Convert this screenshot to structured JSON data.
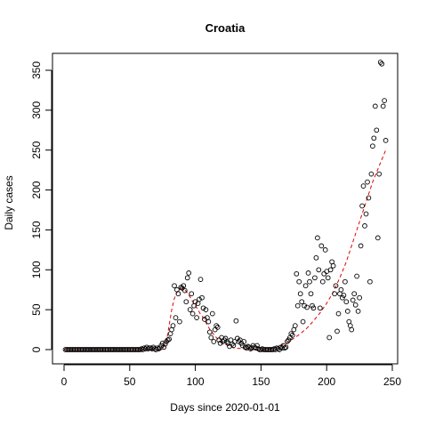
{
  "chart_data": {
    "type": "scatter",
    "title": "Croatia",
    "xlabel": "Days since 2020-01-01",
    "ylabel": "Daily cases",
    "xlim": [
      0,
      250
    ],
    "ylim": [
      0,
      350
    ],
    "x_ticks": [
      0,
      50,
      100,
      150,
      200,
      250
    ],
    "y_ticks": [
      0,
      50,
      100,
      150,
      200,
      250,
      300,
      350
    ],
    "grid": false,
    "legend": "none",
    "colors": {
      "points": "#000000",
      "fit": "#e00000"
    },
    "points": [
      [
        1,
        0
      ],
      [
        2,
        0
      ],
      [
        3,
        0
      ],
      [
        4,
        0
      ],
      [
        5,
        0
      ],
      [
        6,
        0
      ],
      [
        7,
        0
      ],
      [
        8,
        0
      ],
      [
        9,
        0
      ],
      [
        10,
        0
      ],
      [
        11,
        0
      ],
      [
        12,
        0
      ],
      [
        13,
        0
      ],
      [
        14,
        0
      ],
      [
        15,
        0
      ],
      [
        16,
        0
      ],
      [
        17,
        0
      ],
      [
        18,
        0
      ],
      [
        19,
        0
      ],
      [
        20,
        0
      ],
      [
        21,
        0
      ],
      [
        22,
        0
      ],
      [
        23,
        0
      ],
      [
        24,
        0
      ],
      [
        25,
        0
      ],
      [
        26,
        0
      ],
      [
        27,
        0
      ],
      [
        28,
        0
      ],
      [
        29,
        0
      ],
      [
        30,
        0
      ],
      [
        31,
        0
      ],
      [
        32,
        0
      ],
      [
        33,
        0
      ],
      [
        34,
        0
      ],
      [
        35,
        0
      ],
      [
        36,
        0
      ],
      [
        37,
        0
      ],
      [
        38,
        0
      ],
      [
        39,
        0
      ],
      [
        40,
        0
      ],
      [
        41,
        0
      ],
      [
        42,
        0
      ],
      [
        43,
        0
      ],
      [
        44,
        0
      ],
      [
        45,
        0
      ],
      [
        46,
        0
      ],
      [
        47,
        0
      ],
      [
        48,
        0
      ],
      [
        49,
        0
      ],
      [
        50,
        0
      ],
      [
        51,
        0
      ],
      [
        52,
        0
      ],
      [
        53,
        0
      ],
      [
        54,
        0
      ],
      [
        55,
        0
      ],
      [
        56,
        0
      ],
      [
        57,
        0
      ],
      [
        58,
        0
      ],
      [
        59,
        1
      ],
      [
        60,
        0
      ],
      [
        61,
        2
      ],
      [
        62,
        1
      ],
      [
        63,
        3
      ],
      [
        64,
        1
      ],
      [
        65,
        2
      ],
      [
        66,
        2
      ],
      [
        67,
        1
      ],
      [
        68,
        3
      ],
      [
        69,
        1
      ],
      [
        70,
        0
      ],
      [
        71,
        2
      ],
      [
        72,
        1
      ],
      [
        73,
        2
      ],
      [
        74,
        5
      ],
      [
        75,
        8
      ],
      [
        76,
        3
      ],
      [
        77,
        7
      ],
      [
        78,
        10
      ],
      [
        79,
        12
      ],
      [
        80,
        13
      ],
      [
        81,
        20
      ],
      [
        82,
        25
      ],
      [
        83,
        30
      ],
      [
        84,
        80
      ],
      [
        85,
        40
      ],
      [
        86,
        75
      ],
      [
        87,
        70
      ],
      [
        88,
        35
      ],
      [
        89,
        78
      ],
      [
        90,
        77
      ],
      [
        91,
        80
      ],
      [
        92,
        74
      ],
      [
        93,
        60
      ],
      [
        94,
        90
      ],
      [
        95,
        96
      ],
      [
        96,
        50
      ],
      [
        97,
        70
      ],
      [
        98,
        45
      ],
      [
        99,
        55
      ],
      [
        100,
        60
      ],
      [
        101,
        40
      ],
      [
        102,
        58
      ],
      [
        103,
        63
      ],
      [
        104,
        88
      ],
      [
        105,
        65
      ],
      [
        106,
        52
      ],
      [
        107,
        38
      ],
      [
        108,
        50
      ],
      [
        109,
        40
      ],
      [
        110,
        35
      ],
      [
        111,
        22
      ],
      [
        112,
        15
      ],
      [
        113,
        45
      ],
      [
        114,
        10
      ],
      [
        115,
        25
      ],
      [
        116,
        30
      ],
      [
        117,
        28
      ],
      [
        118,
        12
      ],
      [
        119,
        8
      ],
      [
        120,
        15
      ],
      [
        121,
        10
      ],
      [
        122,
        12
      ],
      [
        123,
        14
      ],
      [
        124,
        10
      ],
      [
        125,
        8
      ],
      [
        126,
        4
      ],
      [
        127,
        12
      ],
      [
        128,
        7
      ],
      [
        129,
        5
      ],
      [
        130,
        10
      ],
      [
        131,
        36
      ],
      [
        132,
        14
      ],
      [
        133,
        10
      ],
      [
        134,
        12
      ],
      [
        135,
        8
      ],
      [
        136,
        5
      ],
      [
        137,
        10
      ],
      [
        138,
        3
      ],
      [
        139,
        2
      ],
      [
        140,
        4
      ],
      [
        141,
        3
      ],
      [
        142,
        1
      ],
      [
        143,
        2
      ],
      [
        144,
        5
      ],
      [
        145,
        3
      ],
      [
        146,
        2
      ],
      [
        147,
        5
      ],
      [
        148,
        1
      ],
      [
        149,
        0
      ],
      [
        150,
        0
      ],
      [
        151,
        1
      ],
      [
        152,
        0
      ],
      [
        153,
        0
      ],
      [
        154,
        0
      ],
      [
        155,
        0
      ],
      [
        156,
        0
      ],
      [
        157,
        0
      ],
      [
        158,
        0
      ],
      [
        159,
        0
      ],
      [
        160,
        1
      ],
      [
        161,
        0
      ],
      [
        162,
        2
      ],
      [
        163,
        1
      ],
      [
        164,
        0
      ],
      [
        165,
        3
      ],
      [
        166,
        2
      ],
      [
        167,
        5
      ],
      [
        168,
        2
      ],
      [
        169,
        3
      ],
      [
        170,
        10
      ],
      [
        171,
        12
      ],
      [
        172,
        15
      ],
      [
        173,
        20
      ],
      [
        174,
        18
      ],
      [
        175,
        25
      ],
      [
        176,
        30
      ],
      [
        177,
        95
      ],
      [
        178,
        55
      ],
      [
        179,
        85
      ],
      [
        180,
        70
      ],
      [
        181,
        60
      ],
      [
        182,
        35
      ],
      [
        183,
        55
      ],
      [
        184,
        80
      ],
      [
        185,
        53
      ],
      [
        186,
        96
      ],
      [
        187,
        85
      ],
      [
        188,
        70
      ],
      [
        189,
        55
      ],
      [
        190,
        52
      ],
      [
        191,
        90
      ],
      [
        192,
        115
      ],
      [
        193,
        140
      ],
      [
        194,
        100
      ],
      [
        195,
        52
      ],
      [
        196,
        130
      ],
      [
        197,
        85
      ],
      [
        198,
        95
      ],
      [
        199,
        125
      ],
      [
        200,
        98
      ],
      [
        201,
        90
      ],
      [
        202,
        15
      ],
      [
        203,
        100
      ],
      [
        204,
        110
      ],
      [
        205,
        105
      ],
      [
        206,
        70
      ],
      [
        207,
        80
      ],
      [
        208,
        23
      ],
      [
        209,
        45
      ],
      [
        210,
        70
      ],
      [
        211,
        75
      ],
      [
        212,
        65
      ],
      [
        213,
        68
      ],
      [
        214,
        85
      ],
      [
        215,
        60
      ],
      [
        216,
        48
      ],
      [
        217,
        35
      ],
      [
        218,
        30
      ],
      [
        219,
        25
      ],
      [
        220,
        62
      ],
      [
        221,
        70
      ],
      [
        222,
        56
      ],
      [
        223,
        92
      ],
      [
        224,
        48
      ],
      [
        225,
        65
      ],
      [
        226,
        130
      ],
      [
        227,
        180
      ],
      [
        228,
        205
      ],
      [
        229,
        155
      ],
      [
        230,
        170
      ],
      [
        231,
        210
      ],
      [
        232,
        190
      ],
      [
        233,
        85
      ],
      [
        234,
        220
      ],
      [
        235,
        255
      ],
      [
        236,
        265
      ],
      [
        237,
        305
      ],
      [
        238,
        275
      ],
      [
        239,
        140
      ],
      [
        240,
        220
      ],
      [
        241,
        360
      ],
      [
        242,
        358
      ],
      [
        243,
        305
      ],
      [
        244,
        312
      ],
      [
        245,
        262
      ]
    ],
    "fit_curve": [
      [
        0,
        0
      ],
      [
        10,
        0
      ],
      [
        20,
        0
      ],
      [
        30,
        0
      ],
      [
        40,
        0
      ],
      [
        50,
        0
      ],
      [
        60,
        0
      ],
      [
        70,
        0
      ],
      [
        75,
        0.5
      ],
      [
        78,
        10
      ],
      [
        80,
        30
      ],
      [
        82,
        50
      ],
      [
        84,
        64
      ],
      [
        86,
        72
      ],
      [
        88,
        76
      ],
      [
        90,
        77
      ],
      [
        92,
        75
      ],
      [
        94,
        71
      ],
      [
        96,
        66
      ],
      [
        98,
        60
      ],
      [
        100,
        55
      ],
      [
        102,
        50
      ],
      [
        104,
        44
      ],
      [
        106,
        40
      ],
      [
        108,
        34
      ],
      [
        110,
        28
      ],
      [
        112,
        23
      ],
      [
        114,
        19
      ],
      [
        116,
        15
      ],
      [
        118,
        12
      ],
      [
        120,
        9
      ],
      [
        125,
        5
      ],
      [
        130,
        2
      ],
      [
        140,
        0.5
      ],
      [
        150,
        0
      ],
      [
        155,
        0
      ],
      [
        160,
        2
      ],
      [
        165,
        5
      ],
      [
        170,
        9
      ],
      [
        175,
        14
      ],
      [
        180,
        20
      ],
      [
        185,
        27
      ],
      [
        190,
        36
      ],
      [
        195,
        46
      ],
      [
        200,
        58
      ],
      [
        205,
        72
      ],
      [
        210,
        90
      ],
      [
        215,
        110
      ],
      [
        220,
        135
      ],
      [
        225,
        160
      ],
      [
        230,
        185
      ],
      [
        235,
        210
      ],
      [
        240,
        230
      ],
      [
        245,
        250
      ]
    ]
  }
}
